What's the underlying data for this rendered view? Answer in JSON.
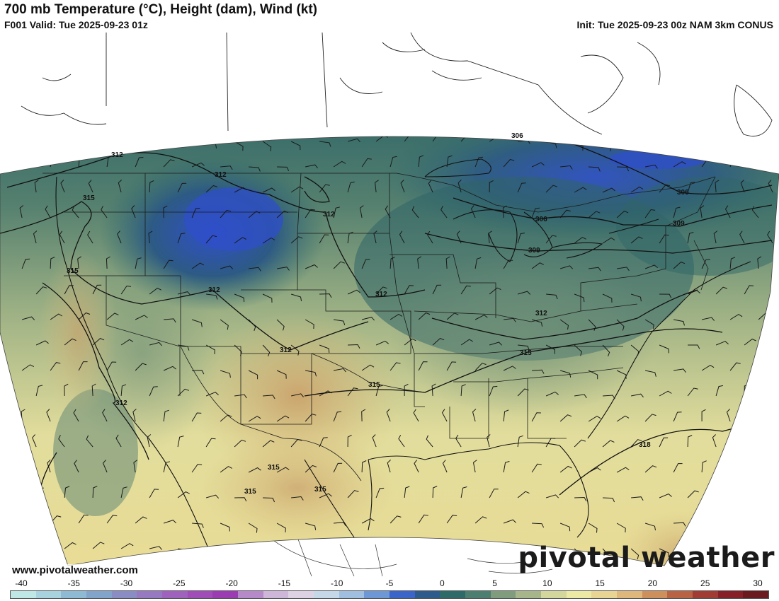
{
  "header": {
    "title": "700 mb Temperature (°C), Height (dam), Wind (kt)",
    "valid": "F001 Valid: Tue 2025-09-23 01z",
    "init": "Init: Tue 2025-09-23 00z NAM 3km CONUS"
  },
  "map": {
    "height_contours": [
      {
        "label": "312"
      },
      {
        "label": "312"
      },
      {
        "label": "312"
      },
      {
        "label": "312"
      },
      {
        "label": "312"
      },
      {
        "label": "312"
      },
      {
        "label": "312"
      },
      {
        "label": "312"
      },
      {
        "label": "315"
      },
      {
        "label": "315"
      },
      {
        "label": "315"
      },
      {
        "label": "315"
      },
      {
        "label": "315"
      },
      {
        "label": "315"
      },
      {
        "label": "315"
      },
      {
        "label": "306"
      },
      {
        "label": "306"
      },
      {
        "label": "306"
      },
      {
        "label": "309"
      },
      {
        "label": "309"
      },
      {
        "label": "318"
      }
    ],
    "colors": {
      "cold": "#2f55c8",
      "cool": "#2f5f66",
      "mild": "#8aa283",
      "warm": "#e7e39f",
      "hot": "#d1ad74"
    }
  },
  "watermark": {
    "site": "www.pivotalweather.com",
    "logo": "pivotal weather"
  },
  "colorbar": {
    "ticks": [
      "-40",
      "-35",
      "-30",
      "-25",
      "-20",
      "-15",
      "-10",
      "-5",
      "0",
      "5",
      "10",
      "15",
      "20",
      "25",
      "30"
    ],
    "colors": [
      "#bfe7e5",
      "#a7d2de",
      "#8ebbd3",
      "#82a3ca",
      "#8a8dc4",
      "#9779c2",
      "#9f63bd",
      "#a04db7",
      "#9c3cb2",
      "#b689c8",
      "#cdb6d7",
      "#dcd2e4",
      "#c5d8e8",
      "#9fbee0",
      "#6e97d6",
      "#3b65c9",
      "#2d5b8c",
      "#2e6b68",
      "#4c7f6f",
      "#7f9c7d",
      "#a6b58a",
      "#d4d79b",
      "#ece9a4",
      "#e8d593",
      "#deb77c",
      "#cd8f5c",
      "#b86344",
      "#a03c33",
      "#862227",
      "#6b1a1f"
    ]
  }
}
